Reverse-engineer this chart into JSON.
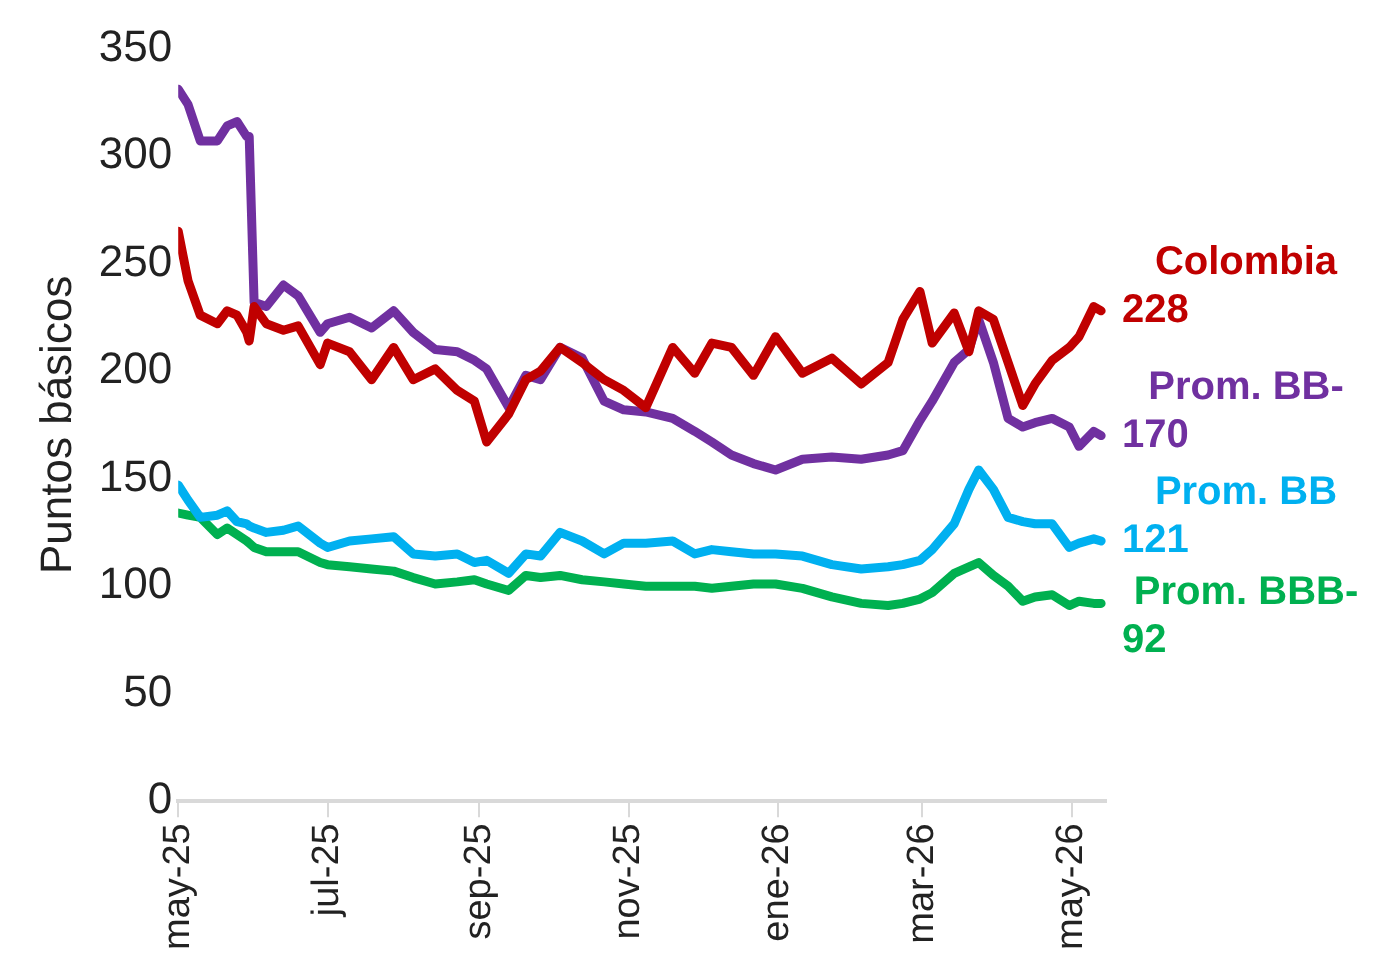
{
  "chart_data": {
    "type": "line",
    "ylabel": "Puntos básicos",
    "x": [
      "2025-05-01",
      "2025-05-05",
      "2025-05-10",
      "2025-05-17",
      "2025-05-21",
      "2025-05-25",
      "2025-05-29",
      "2025-05-30",
      "2025-06-01",
      "2025-06-06",
      "2025-06-13",
      "2025-06-19",
      "2025-06-28",
      "2025-07-01",
      "2025-07-10",
      "2025-07-19",
      "2025-07-28",
      "2025-08-05",
      "2025-08-14",
      "2025-08-23",
      "2025-08-30",
      "2025-09-04",
      "2025-09-13",
      "2025-09-20",
      "2025-09-26",
      "2025-10-04",
      "2025-10-13",
      "2025-10-22",
      "2025-10-30",
      "2025-11-08",
      "2025-11-19",
      "2025-11-28",
      "2025-12-05",
      "2025-12-13",
      "2025-12-22",
      "2025-12-31",
      "2026-01-11",
      "2026-01-23",
      "2026-02-04",
      "2026-02-15",
      "2026-02-21",
      "2026-02-28",
      "2026-03-05",
      "2026-03-14",
      "2026-03-20",
      "2026-03-24",
      "2026-03-30",
      "2026-04-05",
      "2026-04-11",
      "2026-04-16",
      "2026-04-23",
      "2026-04-30",
      "2026-05-04",
      "2026-05-10",
      "2026-05-13"
    ],
    "series": [
      {
        "name": "Colombia",
        "color": "#c00000",
        "values": [
          265,
          242,
          226,
          222,
          228,
          226,
          218,
          214,
          230,
          222,
          219,
          221,
          203,
          213,
          209,
          196,
          211,
          196,
          201,
          191,
          186,
          167,
          180,
          196,
          200,
          211,
          204,
          196,
          191,
          183,
          211,
          199,
          213,
          211,
          198,
          216,
          199,
          206,
          194,
          204,
          224,
          237,
          213,
          227,
          209,
          228,
          224,
          204,
          184,
          194,
          205,
          211,
          216,
          230,
          228
        ],
        "value_labels": [
          null,
          null,
          null,
          null,
          null,
          null,
          null,
          null,
          null,
          null,
          null,
          null,
          null,
          null,
          null,
          null,
          null,
          null,
          null,
          null,
          null,
          null,
          null,
          null,
          null,
          null,
          null,
          null,
          null,
          null,
          null,
          null,
          null,
          null,
          null,
          null,
          null,
          null,
          null,
          null,
          null,
          null,
          null,
          null,
          null,
          null,
          null,
          null,
          null,
          null,
          null,
          null,
          null,
          null,
          "228"
        ]
      },
      {
        "name": "Prom. BB-",
        "color": "#7030a0",
        "values": [
          331,
          324,
          307,
          307,
          314,
          316,
          309,
          309,
          232,
          230,
          240,
          235,
          218,
          222,
          225,
          220,
          228,
          218,
          210,
          209,
          205,
          201,
          183,
          198,
          196,
          211,
          206,
          186,
          182,
          181,
          178,
          172,
          167,
          161,
          157,
          154,
          159,
          160,
          159,
          161,
          163,
          177,
          186,
          204,
          210,
          224,
          204,
          178,
          174,
          176,
          178,
          174,
          165,
          172,
          170
        ],
        "value_labels": [
          null,
          null,
          null,
          null,
          null,
          null,
          null,
          null,
          null,
          null,
          null,
          null,
          null,
          null,
          null,
          null,
          null,
          null,
          null,
          null,
          null,
          null,
          null,
          null,
          null,
          null,
          null,
          null,
          null,
          null,
          null,
          null,
          null,
          null,
          null,
          null,
          null,
          null,
          null,
          null,
          null,
          null,
          null,
          null,
          null,
          null,
          null,
          null,
          null,
          null,
          null,
          null,
          null,
          null,
          "170"
        ]
      },
      {
        "name": "Prom. BB",
        "color": "#00b0f0",
        "values": [
          147,
          140,
          132,
          133,
          135,
          130,
          129,
          128,
          127,
          125,
          126,
          128,
          120,
          118,
          121,
          122,
          123,
          115,
          114,
          115,
          111,
          112,
          106,
          115,
          114,
          125,
          121,
          115,
          120,
          120,
          121,
          115,
          117,
          116,
          115,
          115,
          114,
          110,
          108,
          109,
          110,
          112,
          117,
          129,
          145,
          154,
          145,
          132,
          130,
          129,
          129,
          118,
          120,
          122,
          121
        ],
        "value_labels": [
          null,
          null,
          null,
          null,
          null,
          null,
          null,
          null,
          null,
          null,
          null,
          null,
          null,
          null,
          null,
          null,
          null,
          null,
          null,
          null,
          null,
          null,
          null,
          null,
          null,
          null,
          null,
          null,
          null,
          null,
          null,
          null,
          null,
          null,
          null,
          null,
          null,
          null,
          null,
          null,
          null,
          null,
          null,
          null,
          null,
          null,
          null,
          null,
          null,
          null,
          null,
          null,
          null,
          null,
          "121"
        ]
      },
      {
        "name": "Prom. BBB-",
        "color": "#00b050",
        "values": [
          134,
          133,
          132,
          124,
          127,
          124,
          121,
          120,
          118,
          116,
          116,
          116,
          111,
          110,
          109,
          108,
          107,
          104,
          101,
          102,
          103,
          101,
          98,
          105,
          104,
          105,
          103,
          102,
          101,
          100,
          100,
          100,
          99,
          100,
          101,
          101,
          99,
          95,
          92,
          91,
          92,
          94,
          97,
          106,
          109,
          111,
          105,
          100,
          93,
          95,
          96,
          91,
          93,
          92,
          92
        ],
        "value_labels": [
          null,
          null,
          null,
          null,
          null,
          null,
          null,
          null,
          null,
          null,
          null,
          null,
          null,
          null,
          null,
          null,
          null,
          null,
          null,
          null,
          null,
          null,
          null,
          null,
          null,
          null,
          null,
          null,
          null,
          null,
          null,
          null,
          null,
          null,
          null,
          null,
          null,
          null,
          null,
          null,
          null,
          null,
          null,
          null,
          null,
          null,
          null,
          null,
          null,
          null,
          null,
          null,
          null,
          null,
          "92"
        ]
      }
    ],
    "xlim": [
      "2025-05-01",
      "2026-05-15"
    ],
    "xticks": [
      {
        "value": "2025-05-01",
        "label": "may-25"
      },
      {
        "value": "2025-07-01",
        "label": "jul-25"
      },
      {
        "value": "2025-09-01",
        "label": "sep-25"
      },
      {
        "value": "2025-11-01",
        "label": "nov-25"
      },
      {
        "value": "2026-01-01",
        "label": "ene-26"
      },
      {
        "value": "2026-03-01",
        "label": "mar-26"
      },
      {
        "value": "2026-05-01",
        "label": "may-26"
      }
    ],
    "ylim": [
      0,
      350
    ],
    "yticks": [
      0,
      50,
      100,
      150,
      200,
      250,
      300,
      350
    ]
  }
}
